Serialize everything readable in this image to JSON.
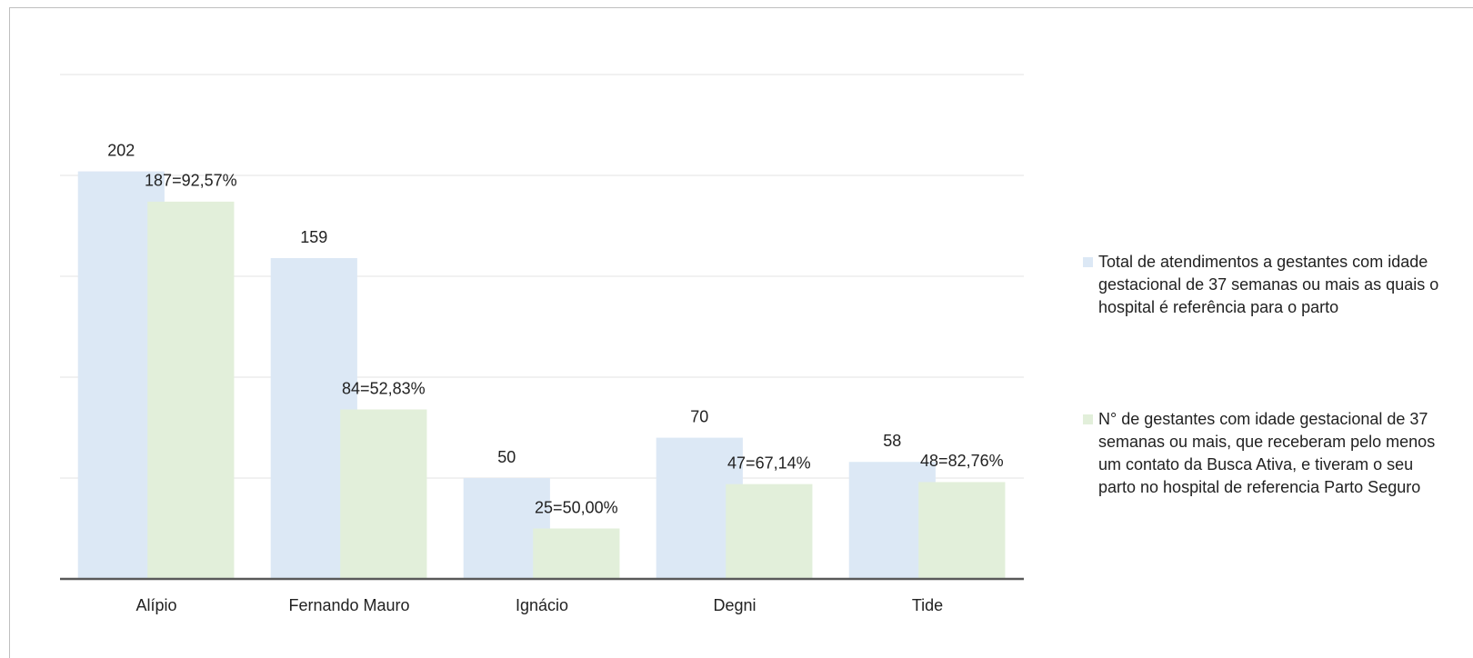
{
  "chart_data": {
    "type": "bar",
    "categories": [
      "Alípio",
      "Fernando Mauro",
      "Ignácio",
      "Degni",
      "Tide"
    ],
    "series": [
      {
        "name": "Total de atendimentos a gestantes com idade gestacional de 37 semanas ou mais as quais o hospital é referência para o parto",
        "color": "#dce8f5",
        "values": [
          202,
          159,
          50,
          70,
          58
        ]
      },
      {
        "name": "N° de gestantes com idade gestacional de 37 semanas ou mais, que receberam pelo menos um contato da Busca Ativa, e tiveram o seu parto no hospital de referencia Parto Seguro",
        "color": "#e2efda",
        "values": [
          187,
          84,
          25,
          47,
          48
        ],
        "value_labels": [
          "187=92,57%",
          "84=52,83%",
          "25=50,00%",
          "47=67,14%",
          "48=82,76%"
        ]
      }
    ],
    "ylim": [
      0,
      250
    ],
    "yticks": [
      0,
      50,
      100,
      150,
      200,
      250
    ],
    "grid": true,
    "legend": "right"
  }
}
